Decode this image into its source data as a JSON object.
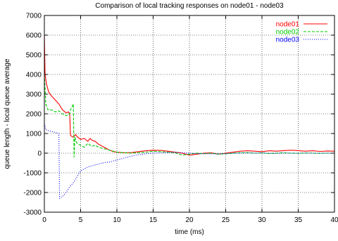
{
  "chart_data": {
    "type": "line",
    "title": "Comparison of local tracking responses on node01 - node03",
    "xlabel": "time (ms)",
    "ylabel": "queue length - local queue average",
    "xlim": [
      0,
      40
    ],
    "ylim": [
      -3000,
      7000
    ],
    "x_ticks": [
      0,
      5,
      10,
      15,
      20,
      25,
      30,
      35,
      40
    ],
    "y_ticks": [
      -3000,
      -2000,
      -1000,
      0,
      1000,
      2000,
      3000,
      4000,
      5000,
      6000,
      7000
    ],
    "grid": true,
    "legend_position": "top-right",
    "series": [
      {
        "name": "node01",
        "color": "#ff0000",
        "style": "solid",
        "x": [
          0,
          0.1,
          0.3,
          0.6,
          1,
          1.5,
          2,
          2.5,
          3,
          3.3,
          3.5,
          3.6,
          4,
          4.3,
          4.5,
          5,
          5.5,
          6,
          6.3,
          6.6,
          7,
          7.5,
          8,
          8.5,
          9,
          9.5,
          10,
          11,
          12,
          13,
          14,
          15,
          16,
          17,
          18,
          19,
          20,
          21,
          22,
          23,
          24,
          25,
          26,
          27,
          28,
          29,
          30,
          31,
          32,
          33,
          34,
          35,
          36,
          37,
          38,
          39,
          40
        ],
        "y": [
          6000,
          4000,
          3500,
          3100,
          2900,
          2700,
          2500,
          2200,
          2050,
          2100,
          2000,
          900,
          800,
          950,
          850,
          700,
          750,
          600,
          750,
          650,
          600,
          450,
          350,
          250,
          150,
          80,
          50,
          20,
          30,
          80,
          120,
          150,
          140,
          100,
          50,
          0,
          -100,
          -50,
          0,
          20,
          -50,
          0,
          50,
          100,
          120,
          100,
          80,
          120,
          100,
          130,
          150,
          130,
          100,
          120,
          90,
          110,
          100
        ]
      },
      {
        "name": "node02",
        "color": "#00cc00",
        "style": "dashed",
        "x": [
          0,
          0.2,
          0.5,
          1,
          1.5,
          2,
          2.5,
          3,
          3.5,
          3.6,
          4,
          4.1,
          4.2,
          4.5,
          5,
          5.5,
          6,
          6.5,
          7,
          7.5,
          8,
          8.5,
          9,
          9.5,
          10,
          11,
          12,
          13,
          14,
          15,
          16,
          17,
          18,
          19,
          20,
          21,
          22,
          23,
          24,
          25,
          26,
          27,
          28,
          29,
          30,
          31,
          32,
          33,
          34,
          35,
          36,
          37,
          38,
          39,
          40
        ],
        "y": [
          4000,
          2500,
          2200,
          2200,
          2100,
          2150,
          2000,
          1900,
          2000,
          2200,
          2500,
          -200,
          800,
          500,
          400,
          300,
          500,
          350,
          400,
          300,
          250,
          200,
          150,
          100,
          50,
          20,
          0,
          30,
          50,
          100,
          80,
          50,
          20,
          -100,
          -50,
          0,
          -30,
          0,
          -50,
          -30,
          0,
          20,
          30,
          0,
          10,
          -20,
          0,
          20,
          0,
          -10,
          10,
          0,
          -10,
          0,
          0
        ]
      },
      {
        "name": "node03",
        "color": "#0000ff",
        "style": "dotted",
        "x": [
          0,
          0.2,
          0.5,
          1,
          1.5,
          2,
          2.1,
          2.5,
          3,
          3.5,
          4,
          4.5,
          5,
          5.5,
          6,
          7,
          8,
          9,
          10,
          11,
          12,
          13,
          14,
          15,
          16,
          17,
          18,
          19,
          20,
          21,
          22,
          23,
          24,
          25,
          26,
          27,
          28,
          29,
          30,
          31,
          32,
          33,
          34,
          35,
          36,
          37,
          38,
          39,
          40
        ],
        "y": [
          1500,
          1200,
          1150,
          1100,
          1050,
          1000,
          -2300,
          -2200,
          -2000,
          -1700,
          -1500,
          -1200,
          -900,
          -800,
          -700,
          -600,
          -500,
          -450,
          -350,
          -250,
          -150,
          -80,
          -30,
          0,
          20,
          30,
          50,
          20,
          0,
          -20,
          -30,
          -40,
          -30,
          -20,
          -10,
          0,
          10,
          0,
          10,
          0,
          -10,
          0,
          0,
          0,
          0,
          0,
          0,
          0,
          0
        ]
      }
    ]
  }
}
